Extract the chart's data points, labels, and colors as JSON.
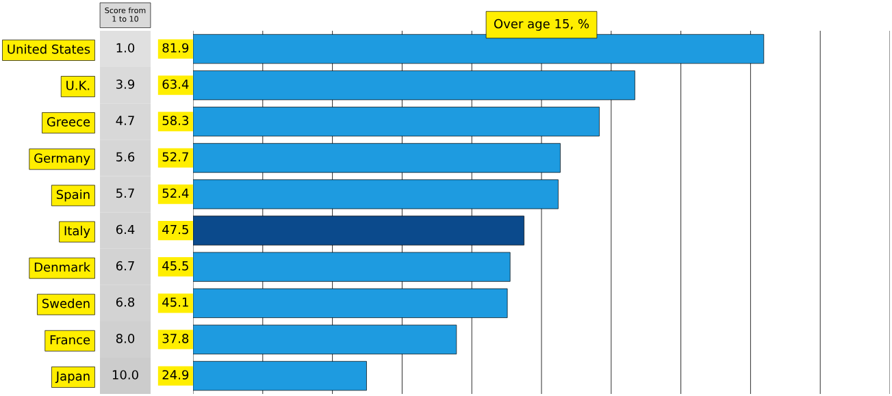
{
  "chart_data": [
    {
      "type": "heatmap",
      "categories": [
        "Score from\n1 to 10"
      ],
      "y_categories": [
        "United States",
        "U.K.",
        "Greece",
        "Germany",
        "Spain",
        "Italy",
        "Denmark",
        "Sweden",
        "France",
        "Japan"
      ],
      "cells": [
        [
          1.0
        ],
        [
          3.9
        ],
        [
          4.7
        ],
        [
          5.6
        ],
        [
          5.7
        ],
        [
          6.4
        ],
        [
          6.7
        ],
        [
          6.8
        ],
        [
          8.0
        ],
        [
          10.0
        ]
      ],
      "cell_labels": [
        [
          "1.0"
        ],
        [
          "3.9"
        ],
        [
          "4.7"
        ],
        [
          "5.6"
        ],
        [
          "5.7"
        ],
        [
          "6.4"
        ],
        [
          "6.7"
        ],
        [
          "6.8"
        ],
        [
          "8.0"
        ],
        [
          "10.0"
        ]
      ]
    },
    {
      "type": "bar",
      "orientation": "horizontal",
      "title": "Over age 15, %",
      "categories": [
        null,
        null,
        null,
        null,
        null,
        null,
        null,
        null,
        null,
        null
      ],
      "values": [
        81.9,
        63.4,
        58.3,
        52.7,
        52.4,
        47.5,
        45.5,
        45.1,
        37.8,
        24.9
      ],
      "colors": [
        "#1e9be0",
        "#1e9be0",
        "#1e9be0",
        "#1e9be0",
        "#1e9be0",
        "#0b4a8c",
        "#1e9be0",
        "#1e9be0",
        "#1e9be0",
        "#1e9be0"
      ],
      "data_labels": true,
      "xlim": [
        0,
        100
      ],
      "xticks": [
        {
          "value": 0,
          "label": null
        },
        {
          "value": 10,
          "label": null
        },
        {
          "value": 20,
          "label": null
        },
        {
          "value": 30,
          "label": null
        },
        {
          "value": 40,
          "label": null
        },
        {
          "value": 50,
          "label": null
        },
        {
          "value": 60,
          "label": null
        },
        {
          "value": 70,
          "label": null
        },
        {
          "value": 80,
          "label": null
        },
        {
          "value": 90,
          "label": null
        },
        {
          "value": 100,
          "label": null
        }
      ],
      "grid": "x"
    }
  ]
}
